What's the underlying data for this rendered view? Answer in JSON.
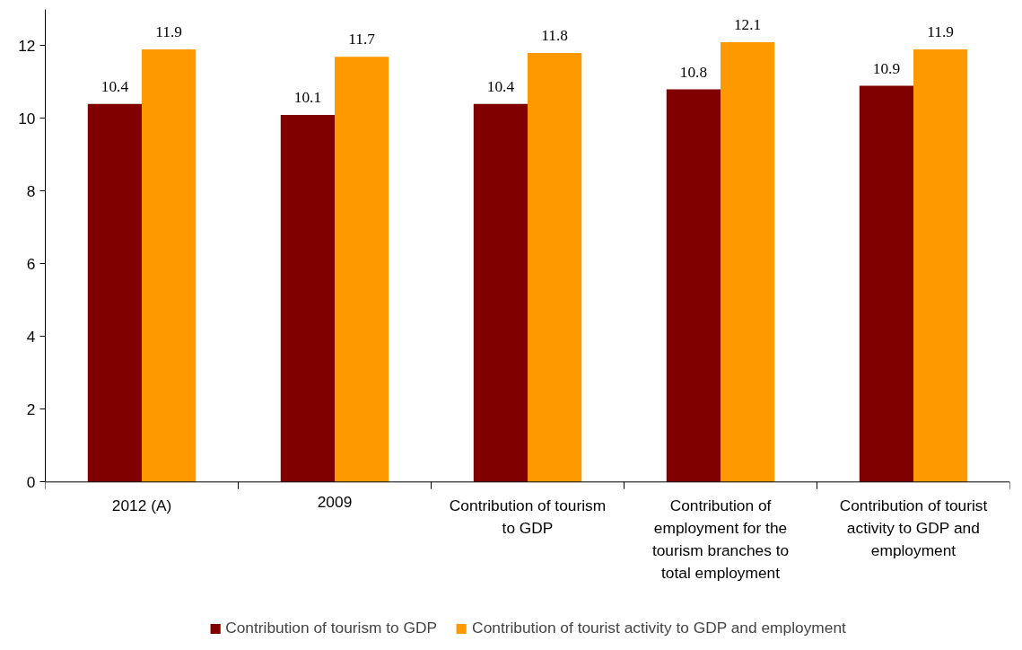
{
  "chart_data": {
    "type": "bar",
    "categories": [
      "2012 (A)",
      "2009",
      "Contribution of tourism to GDP",
      "Contribution of employment for the tourism branches to total employment",
      "Contribution of tourist activity to GDP and employment"
    ],
    "series": [
      {
        "name": "Contribution of tourism to GDP",
        "color": "#800000",
        "values": [
          10.4,
          10.1,
          10.4,
          10.8,
          10.9
        ]
      },
      {
        "name": "Contribution of tourist activity to GDP and employment",
        "color": "#ff9900",
        "values": [
          11.9,
          11.7,
          11.8,
          12.1,
          11.9
        ]
      }
    ],
    "ylim": [
      0,
      13
    ],
    "yticks": [
      0,
      2,
      4,
      6,
      8,
      10,
      12
    ],
    "data_labels": true,
    "grid": false,
    "legend": "bottom"
  }
}
